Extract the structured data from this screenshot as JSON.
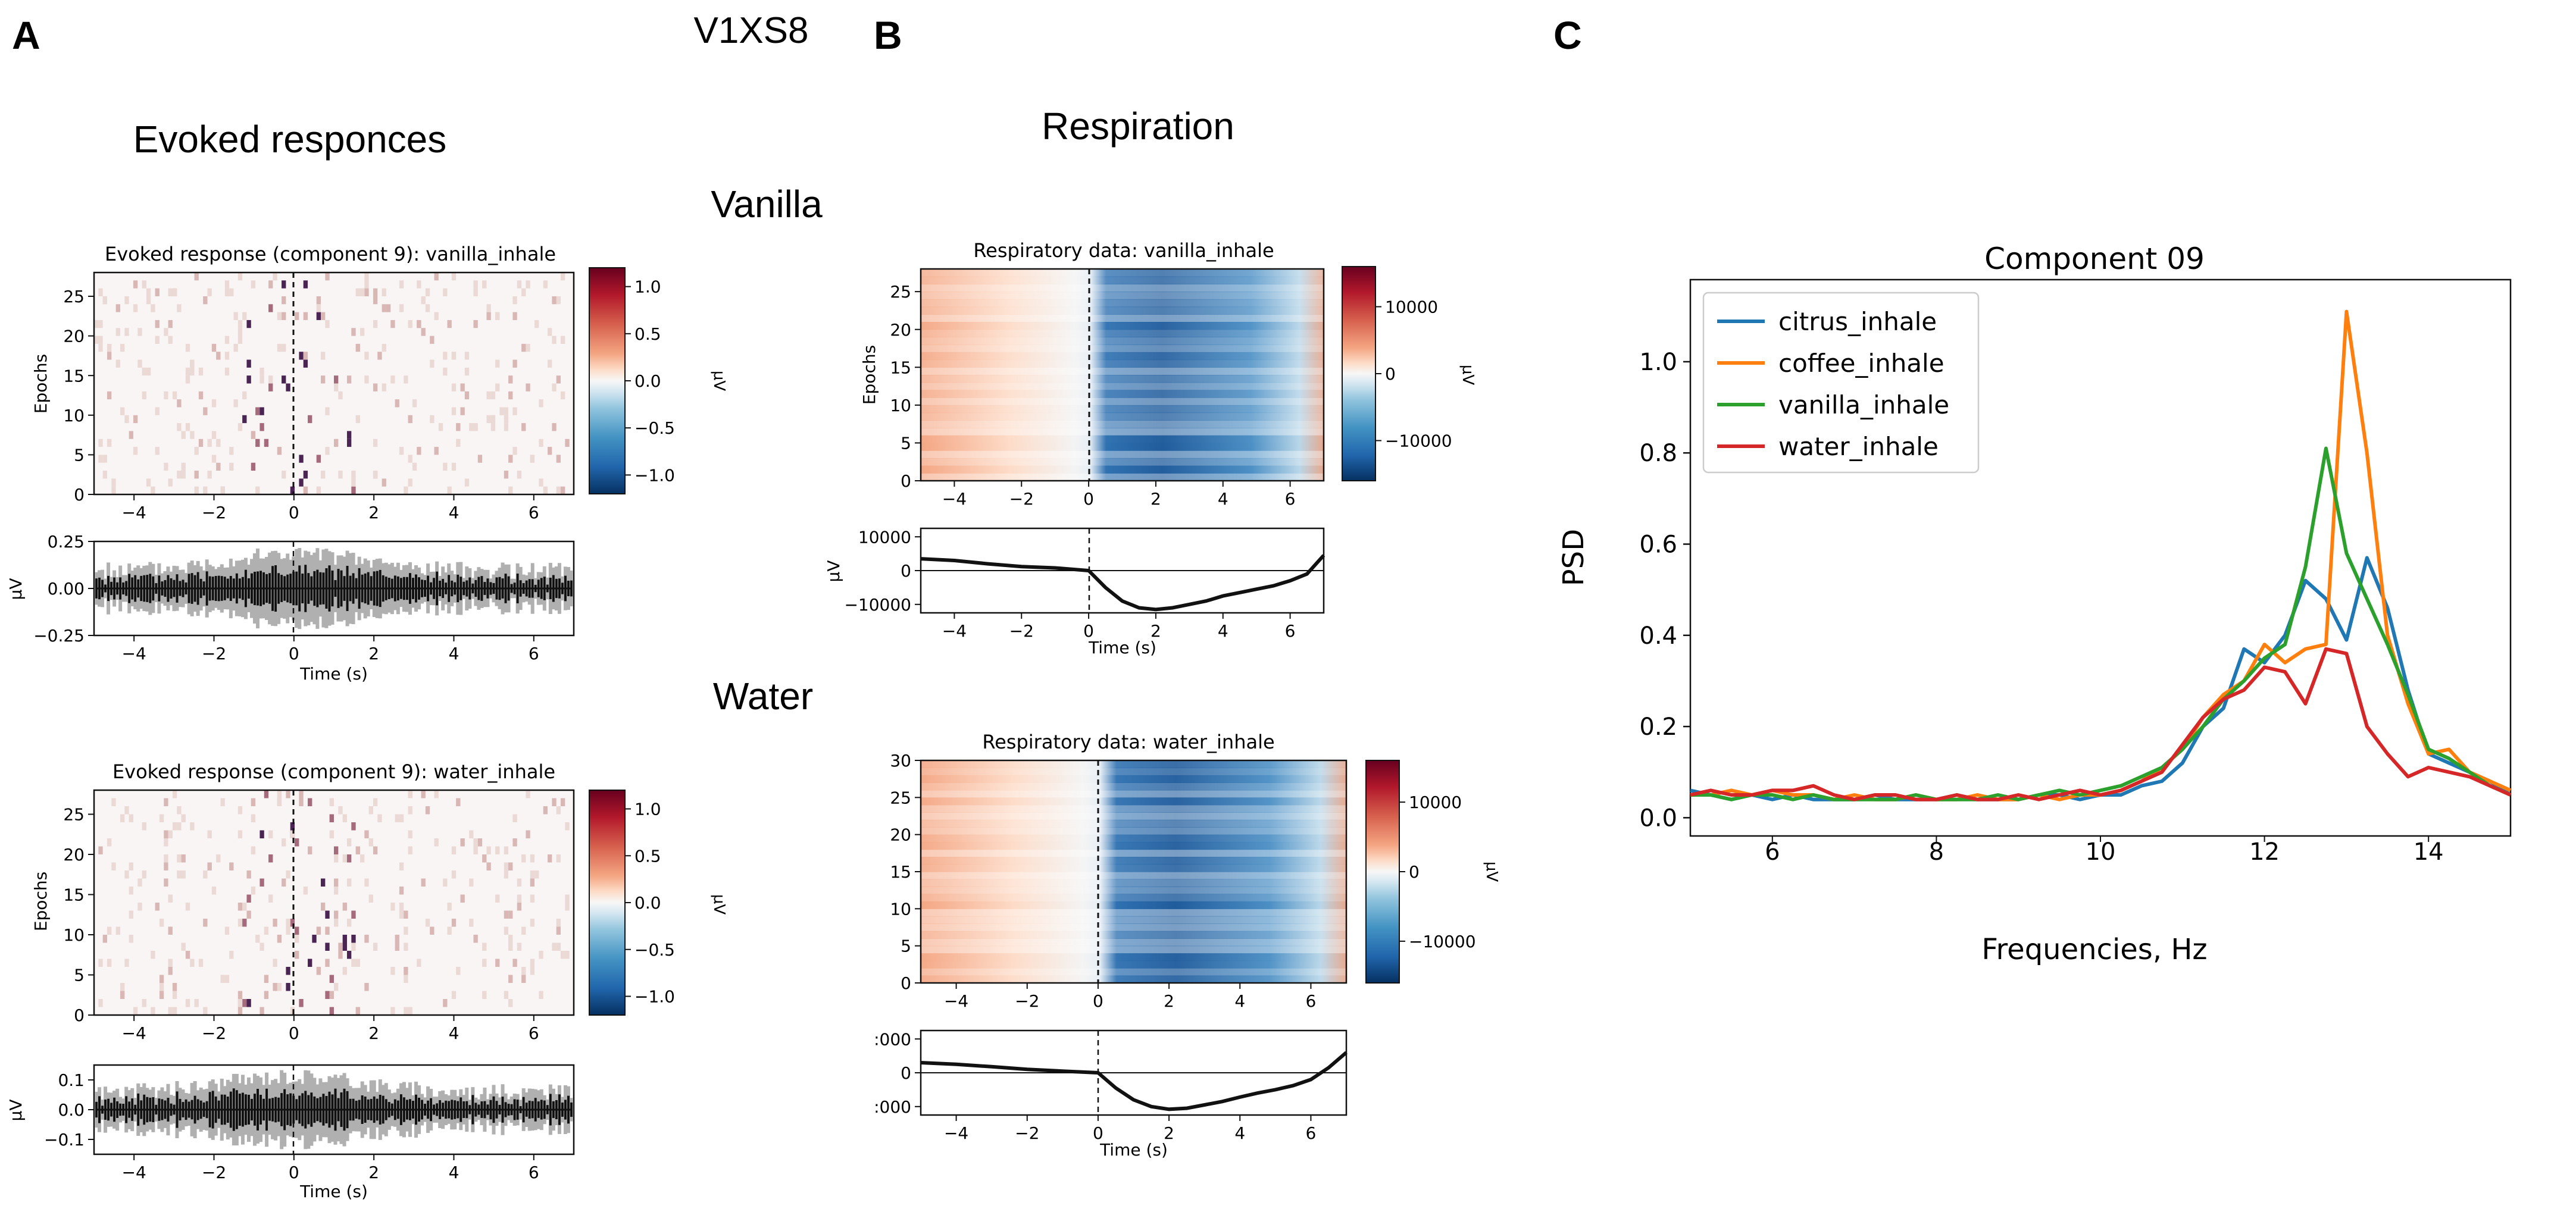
{
  "figure": {
    "panel_labels": {
      "a": "A",
      "b": "B",
      "c": "C"
    },
    "subject_id": "V1XS8",
    "panel_a_title": "Evoked responces",
    "panel_b_title": "Respiration",
    "row_labels": {
      "vanilla": "Vanilla",
      "water": "Water"
    },
    "colors": {
      "citrus": "#1f77b4",
      "coffee": "#ff7f0e",
      "vanilla": "#2ca02c",
      "water": "#d62728",
      "cmap_low": "#053061",
      "cmap_high": "#67001f"
    }
  },
  "chart_data": [
    {
      "id": "evoked_vanilla_image",
      "type": "heatmap",
      "title": "Evoked response (component 9): vanilla_inhale",
      "xlabel": "",
      "ylabel": "Epochs",
      "xlim": [
        -5,
        7
      ],
      "ylim": [
        0,
        28
      ],
      "xticks": [
        -4,
        -2,
        0,
        2,
        4,
        6
      ],
      "xtick_labels": [
        "−4",
        "−2",
        "0",
        "2",
        "4",
        "6"
      ],
      "yticks": [
        0,
        5,
        10,
        15,
        20,
        25
      ],
      "ytick_labels": [
        "0",
        "5",
        "10",
        "15",
        "20",
        "25"
      ],
      "colorbar": {
        "ticks": [
          1.0,
          0.5,
          0.0,
          -0.5,
          -1.0
        ],
        "tick_labels": [
          "1.0",
          "0.5",
          "0.0",
          "−0.5",
          "−1.0"
        ],
        "label": "μV",
        "range": [
          -1.2,
          1.2
        ]
      }
    },
    {
      "id": "evoked_vanilla_trace",
      "type": "line",
      "xlabel": "Time (s)",
      "ylabel": "μV",
      "xlim": [
        -5,
        7
      ],
      "ylim": [
        -0.25,
        0.25
      ],
      "xticks": [
        -4,
        -2,
        0,
        2,
        4,
        6
      ],
      "xtick_labels": [
        "−4",
        "−2",
        "0",
        "2",
        "4",
        "6"
      ],
      "yticks": [
        0.25,
        0.0,
        -0.25
      ],
      "ytick_labels": [
        "0.25",
        "0.00",
        "−0.25"
      ]
    },
    {
      "id": "evoked_water_image",
      "type": "heatmap",
      "title": "Evoked response (component 9): water_inhale",
      "xlabel": "",
      "ylabel": "Epochs",
      "xlim": [
        -5,
        7
      ],
      "ylim": [
        0,
        28
      ],
      "xticks": [
        -4,
        -2,
        0,
        2,
        4,
        6
      ],
      "xtick_labels": [
        "−4",
        "−2",
        "0",
        "2",
        "4",
        "6"
      ],
      "yticks": [
        0,
        5,
        10,
        15,
        20,
        25
      ],
      "ytick_labels": [
        "0",
        "5",
        "10",
        "15",
        "20",
        "25"
      ],
      "colorbar": {
        "ticks": [
          1.0,
          0.5,
          0.0,
          -0.5,
          -1.0
        ],
        "tick_labels": [
          "1.0",
          "0.5",
          "0.0",
          "−0.5",
          "−1.0"
        ],
        "label": "μV",
        "range": [
          -1.2,
          1.2
        ]
      }
    },
    {
      "id": "evoked_water_trace",
      "type": "line",
      "xlabel": "Time (s)",
      "ylabel": "μV",
      "xlim": [
        -5,
        7
      ],
      "ylim": [
        -0.15,
        0.15
      ],
      "xticks": [
        -4,
        -2,
        0,
        2,
        4,
        6
      ],
      "xtick_labels": [
        "−4",
        "−2",
        "0",
        "2",
        "4",
        "6"
      ],
      "yticks": [
        0.1,
        0.0,
        -0.1
      ],
      "ytick_labels": [
        "0.1",
        "0.0",
        "−0.1"
      ]
    },
    {
      "id": "resp_vanilla_image",
      "type": "heatmap",
      "title": "Respiratory data: vanilla_inhale",
      "xlabel": "",
      "ylabel": "Epochs",
      "xlim": [
        -5,
        7
      ],
      "ylim": [
        0,
        28
      ],
      "xticks": [
        -4,
        -2,
        0,
        2,
        4,
        6
      ],
      "xtick_labels": [
        "−4",
        "−2",
        "0",
        "2",
        "4",
        "6"
      ],
      "yticks": [
        0,
        5,
        10,
        15,
        20,
        25
      ],
      "ytick_labels": [
        "0",
        "5",
        "10",
        "15",
        "20",
        "25"
      ],
      "colorbar": {
        "ticks": [
          10000,
          0,
          -10000
        ],
        "tick_labels": [
          "10000",
          "0",
          "−10000"
        ],
        "label": "μV",
        "range": [
          -16000,
          16000
        ]
      }
    },
    {
      "id": "resp_vanilla_trace",
      "type": "line",
      "xlabel": "Time (s)",
      "ylabel": "μV",
      "xlim": [
        -5,
        7
      ],
      "ylim": [
        -12500,
        12500
      ],
      "xticks": [
        -4,
        -2,
        0,
        2,
        4,
        6
      ],
      "xtick_labels": [
        "−4",
        "−2",
        "0",
        "2",
        "4",
        "6"
      ],
      "yticks": [
        10000,
        0,
        -10000
      ],
      "ytick_labels": [
        "10000",
        "0",
        "−10000"
      ],
      "x": [
        -5,
        -4,
        -3,
        -2,
        -1,
        0,
        0.5,
        1,
        1.5,
        2,
        2.5,
        3,
        3.5,
        4,
        4.5,
        5,
        5.5,
        6,
        6.5,
        7
      ],
      "y": [
        3500,
        3000,
        2000,
        1200,
        800,
        0,
        -5000,
        -9000,
        -11000,
        -11500,
        -11000,
        -10000,
        -9000,
        -7500,
        -6500,
        -5500,
        -4500,
        -3000,
        -1000,
        4500
      ]
    },
    {
      "id": "resp_water_image",
      "type": "heatmap",
      "title": "Respiratory data: water_inhale",
      "xlabel": "",
      "ylabel": "Epochs",
      "xlim": [
        -5,
        7
      ],
      "ylim": [
        0,
        30
      ],
      "xticks": [
        -4,
        -2,
        0,
        2,
        4,
        6
      ],
      "xtick_labels": [
        "−4",
        "−2",
        "0",
        "2",
        "4",
        "6"
      ],
      "yticks": [
        0,
        5,
        10,
        15,
        20,
        25,
        30
      ],
      "ytick_labels": [
        "0",
        "5",
        "10",
        "15",
        "20",
        "25",
        "30"
      ],
      "colorbar": {
        "ticks": [
          10000,
          0,
          -10000
        ],
        "tick_labels": [
          "10000",
          "0",
          "−10000"
        ],
        "label": "μV",
        "range": [
          -16000,
          16000
        ]
      }
    },
    {
      "id": "resp_water_trace",
      "type": "line",
      "xlabel": "Time (s)",
      "ylabel": "",
      "xlim": [
        -5,
        7
      ],
      "ylim": [
        -12500,
        12500
      ],
      "xticks": [
        -4,
        -2,
        0,
        2,
        4,
        6
      ],
      "xtick_labels": [
        "−4",
        "−2",
        "0",
        "2",
        "4",
        "6"
      ],
      "yticks": [
        10000,
        0,
        -10000
      ],
      "ytick_labels": [
        ":000",
        "0",
        ":000"
      ],
      "x": [
        -5,
        -4,
        -3,
        -2,
        -1,
        0,
        0.5,
        1,
        1.5,
        2,
        2.5,
        3,
        3.5,
        4,
        4.5,
        5,
        5.5,
        6,
        6.5,
        7
      ],
      "y": [
        3000,
        2500,
        1800,
        1000,
        500,
        0,
        -4500,
        -8000,
        -10000,
        -10800,
        -10500,
        -9500,
        -8500,
        -7200,
        -6000,
        -5000,
        -3800,
        -2000,
        1500,
        6000
      ]
    },
    {
      "id": "psd",
      "type": "line",
      "title": "Component 09",
      "xlabel": "Frequencies, Hz",
      "ylabel": "PSD",
      "xlim": [
        5,
        15
      ],
      "ylim": [
        -0.04,
        1.18
      ],
      "xticks": [
        6,
        8,
        10,
        12,
        14
      ],
      "xtick_labels": [
        "6",
        "8",
        "10",
        "12",
        "14"
      ],
      "yticks": [
        0.0,
        0.2,
        0.4,
        0.6,
        0.8,
        1.0
      ],
      "ytick_labels": [
        "0.0",
        "0.2",
        "0.4",
        "0.6",
        "0.8",
        "1.0"
      ],
      "legend_position": "top-left",
      "x": [
        5.0,
        5.25,
        5.5,
        5.75,
        6.0,
        6.25,
        6.5,
        6.75,
        7.0,
        7.25,
        7.5,
        7.75,
        8.0,
        8.25,
        8.5,
        8.75,
        9.0,
        9.25,
        9.5,
        9.75,
        10.0,
        10.25,
        10.5,
        10.75,
        11.0,
        11.25,
        11.5,
        11.75,
        12.0,
        12.25,
        12.5,
        12.75,
        13.0,
        13.25,
        13.5,
        13.75,
        14.0,
        14.25,
        14.5,
        14.75,
        15.0
      ],
      "series": [
        {
          "name": "citrus_inhale",
          "values": [
            0.06,
            0.05,
            0.04,
            0.05,
            0.04,
            0.05,
            0.04,
            0.04,
            0.04,
            0.05,
            0.04,
            0.04,
            0.04,
            0.05,
            0.04,
            0.04,
            0.04,
            0.05,
            0.05,
            0.04,
            0.05,
            0.05,
            0.07,
            0.08,
            0.12,
            0.2,
            0.24,
            0.37,
            0.34,
            0.4,
            0.52,
            0.48,
            0.39,
            0.57,
            0.46,
            0.28,
            0.14,
            0.12,
            0.1,
            0.08,
            0.05
          ]
        },
        {
          "name": "coffee_inhale",
          "values": [
            0.05,
            0.05,
            0.06,
            0.05,
            0.06,
            0.05,
            0.05,
            0.04,
            0.05,
            0.04,
            0.04,
            0.05,
            0.04,
            0.04,
            0.05,
            0.04,
            0.04,
            0.05,
            0.04,
            0.05,
            0.05,
            0.06,
            0.08,
            0.11,
            0.15,
            0.22,
            0.27,
            0.3,
            0.38,
            0.34,
            0.37,
            0.38,
            1.11,
            0.8,
            0.4,
            0.25,
            0.14,
            0.15,
            0.1,
            0.08,
            0.06
          ]
        },
        {
          "name": "vanilla_inhale",
          "values": [
            0.05,
            0.05,
            0.04,
            0.05,
            0.05,
            0.04,
            0.05,
            0.04,
            0.04,
            0.04,
            0.04,
            0.05,
            0.04,
            0.04,
            0.04,
            0.05,
            0.04,
            0.05,
            0.06,
            0.05,
            0.06,
            0.07,
            0.09,
            0.11,
            0.15,
            0.2,
            0.26,
            0.3,
            0.35,
            0.38,
            0.55,
            0.81,
            0.58,
            0.48,
            0.38,
            0.27,
            0.15,
            0.13,
            0.1,
            0.07,
            0.05
          ]
        },
        {
          "name": "water_inhale",
          "values": [
            0.05,
            0.06,
            0.05,
            0.05,
            0.06,
            0.06,
            0.07,
            0.05,
            0.04,
            0.05,
            0.05,
            0.04,
            0.04,
            0.05,
            0.04,
            0.04,
            0.05,
            0.04,
            0.05,
            0.06,
            0.05,
            0.06,
            0.08,
            0.1,
            0.16,
            0.22,
            0.26,
            0.28,
            0.33,
            0.32,
            0.25,
            0.37,
            0.36,
            0.2,
            0.14,
            0.09,
            0.11,
            0.1,
            0.09,
            0.07,
            0.05
          ]
        }
      ]
    }
  ]
}
